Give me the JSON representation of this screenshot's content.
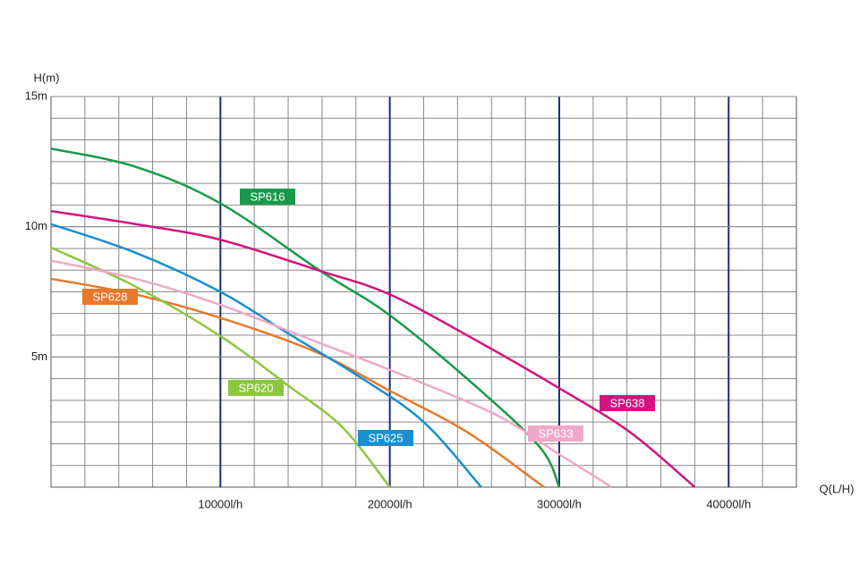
{
  "chart_data": {
    "type": "line",
    "x_label": "Q(L/H)",
    "y_label": "H(m)",
    "xlim": [
      0,
      44000
    ],
    "ylim": [
      0,
      15
    ],
    "xticks": [
      {
        "value": 10000,
        "label": "10000l/h"
      },
      {
        "value": 20000,
        "label": "20000l/h"
      },
      {
        "value": 30000,
        "label": "30000l/h"
      },
      {
        "value": 40000,
        "label": "40000l/h"
      }
    ],
    "yticks": [
      {
        "value": 5,
        "label": "5m"
      },
      {
        "value": 10,
        "label": "10m"
      },
      {
        "value": 15,
        "label": "15m"
      }
    ],
    "grid": true,
    "series": [
      {
        "name": "SP616",
        "color": "#1a9a4a",
        "x": [
          0,
          5000,
          10000,
          15900,
          20000,
          25200,
          28900,
          30000
        ],
        "values": [
          13.0,
          12.3,
          10.9,
          8.3,
          6.6,
          3.8,
          1.5,
          0
        ]
      },
      {
        "name": "SP628",
        "color": "#e8782a",
        "x": [
          0,
          5000,
          10000,
          15600,
          20000,
          24600,
          29100
        ],
        "values": [
          8.0,
          7.4,
          6.5,
          5.2,
          3.7,
          2.1,
          0
        ]
      },
      {
        "name": "SP620",
        "color": "#8cc63f",
        "x": [
          0,
          5000,
          10000,
          14000,
          17200,
          20000
        ],
        "values": [
          9.2,
          7.7,
          5.8,
          3.9,
          2.3,
          0
        ]
      },
      {
        "name": "SP625",
        "color": "#1a8fd0",
        "x": [
          0,
          5000,
          10000,
          14000,
          18300,
          22000,
          25400
        ],
        "values": [
          10.1,
          9.0,
          7.5,
          5.9,
          4.2,
          2.5,
          0
        ]
      },
      {
        "name": "SP633",
        "color": "#f0a8c8",
        "x": [
          0,
          5000,
          10000,
          15600,
          20000,
          26200,
          29900,
          33100
        ],
        "values": [
          8.7,
          8.0,
          7.0,
          5.6,
          4.5,
          2.8,
          1.3,
          0
        ]
      },
      {
        "name": "SP638",
        "color": "#d3147f",
        "x": [
          0,
          5000,
          10000,
          15900,
          20000,
          25200,
          30000,
          34200,
          38000
        ],
        "values": [
          10.6,
          10.1,
          9.5,
          8.3,
          7.4,
          5.6,
          3.8,
          2.1,
          0
        ]
      }
    ]
  }
}
